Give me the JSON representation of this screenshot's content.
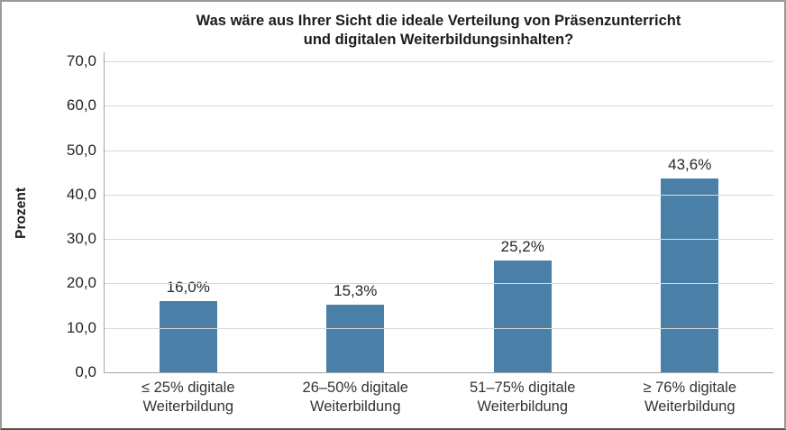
{
  "chart_data": {
    "type": "bar",
    "title": "Was wäre aus Ihrer Sicht die ideale Verteilung von Präsenzunterricht und digitalen Weiterbildungsinhalten?",
    "title_line1": "Was wäre aus Ihrer Sicht die ideale Verteilung von Präsenzunterricht",
    "title_line2": "und digitalen Weiterbildungsinhalten?",
    "xlabel": "",
    "ylabel": "Prozent",
    "categories": [
      "≤ 25% digitale Weiterbildung",
      "26–50% digitale Weiterbildung",
      "51–75% digitale Weiterbildung",
      "≥ 76% digitale Weiterbildung"
    ],
    "values": [
      16.0,
      15.3,
      25.2,
      43.6
    ],
    "value_labels": [
      "16,0%",
      "15,3%",
      "25,2%",
      "43,6%"
    ],
    "ylim": [
      0,
      70
    ],
    "ytick_step": 10,
    "ytick_labels": [
      "0,0",
      "10,0",
      "20,0",
      "30,0",
      "40,0",
      "50,0",
      "60,0",
      "70,0"
    ],
    "grid": true,
    "legend": "none",
    "colors": {
      "bar": "#4a80a8",
      "gridline": "#d8d8d8",
      "axis": "#a6a6a6",
      "title_text": "#1c1c1c",
      "label_text": "#262626"
    }
  }
}
